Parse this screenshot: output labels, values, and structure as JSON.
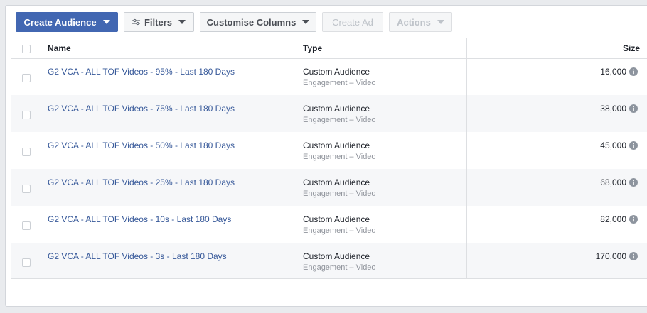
{
  "toolbar": {
    "create_audience": "Create Audience",
    "filters": "Filters",
    "customise_columns": "Customise Columns",
    "create_ad": "Create Ad",
    "actions": "Actions"
  },
  "table": {
    "headers": {
      "name": "Name",
      "type": "Type",
      "size": "Size"
    },
    "rows": [
      {
        "name": "G2 VCA - ALL TOF Videos - 95% - Last 180 Days",
        "type": "Custom Audience",
        "subtype": "Engagement – Video",
        "size": "16,000"
      },
      {
        "name": "G2 VCA - ALL TOF Videos - 75% - Last 180 Days",
        "type": "Custom Audience",
        "subtype": "Engagement – Video",
        "size": "38,000"
      },
      {
        "name": "G2 VCA - ALL TOF Videos - 50% - Last 180 Days",
        "type": "Custom Audience",
        "subtype": "Engagement – Video",
        "size": "45,000"
      },
      {
        "name": "G2 VCA - ALL TOF Videos - 25% - Last 180 Days",
        "type": "Custom Audience",
        "subtype": "Engagement – Video",
        "size": "68,000"
      },
      {
        "name": "G2 VCA - ALL TOF Videos - 10s - Last 180 Days",
        "type": "Custom Audience",
        "subtype": "Engagement – Video",
        "size": "82,000"
      },
      {
        "name": "G2 VCA - ALL TOF Videos - 3s - Last 180 Days",
        "type": "Custom Audience",
        "subtype": "Engagement – Video",
        "size": "170,000"
      }
    ]
  },
  "colors": {
    "primary": "#4267b2",
    "link": "#365899",
    "row_alt": "#f6f7f9"
  },
  "icons": {
    "dropdown": "caret-down-icon",
    "filters": "sliders-icon",
    "info": "info-icon"
  }
}
